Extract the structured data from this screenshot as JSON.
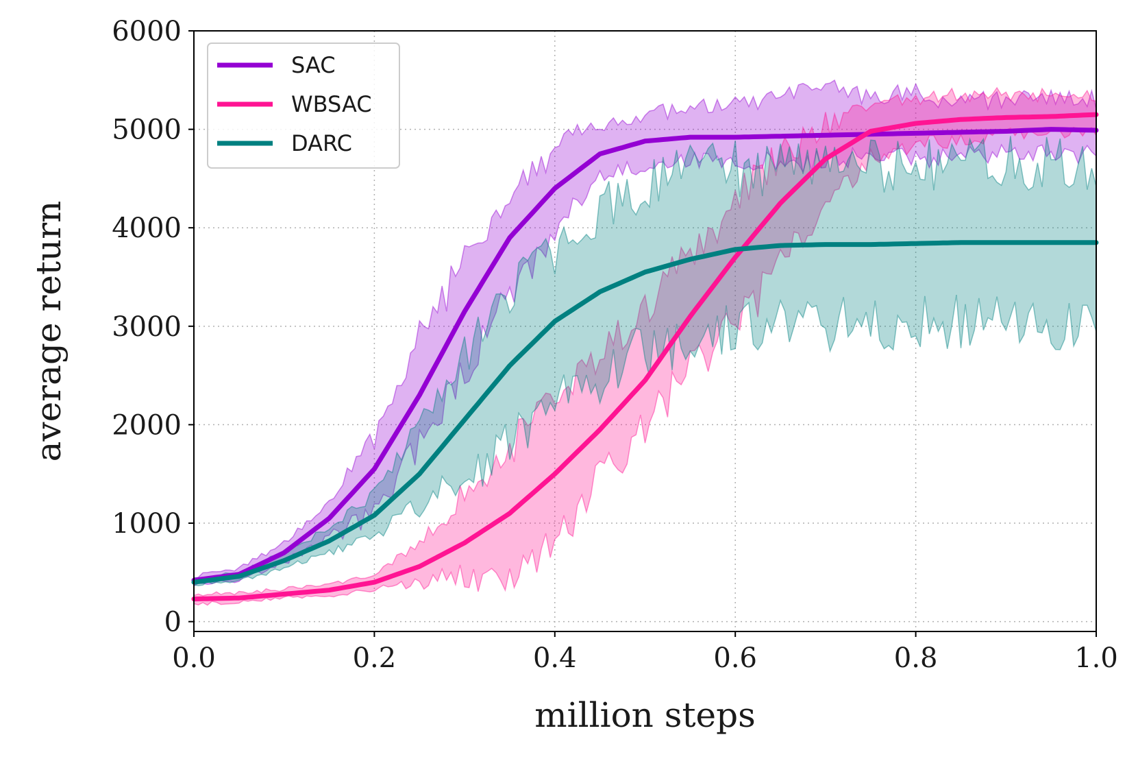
{
  "chart_data": {
    "type": "line",
    "title": "",
    "xlabel": "million steps",
    "ylabel": "average return",
    "xlim": [
      0.0,
      1.0
    ],
    "ylim": [
      -100,
      6000
    ],
    "xticks": [
      "0.0",
      "0.2",
      "0.4",
      "0.6",
      "0.8",
      "1.0"
    ],
    "yticks": [
      "0",
      "1000",
      "2000",
      "3000",
      "4000",
      "5000",
      "6000"
    ],
    "grid": true,
    "legend_position": "top-left",
    "series": [
      {
        "name": "SAC",
        "color": "#9400D3",
        "x": [
          0.0,
          0.05,
          0.1,
          0.15,
          0.2,
          0.25,
          0.3,
          0.35,
          0.4,
          0.45,
          0.5,
          0.55,
          0.6,
          0.65,
          0.7,
          0.75,
          0.8,
          0.85,
          0.9,
          0.95,
          1.0
        ],
        "mean": [
          420,
          480,
          700,
          1050,
          1550,
          2300,
          3150,
          3900,
          4400,
          4750,
          4880,
          4920,
          4920,
          4930,
          4940,
          4950,
          4960,
          4970,
          4980,
          5000,
          4990
        ],
        "lower": [
          380,
          420,
          600,
          850,
          1100,
          1800,
          2500,
          3300,
          3950,
          4500,
          4650,
          4700,
          4700,
          4650,
          4700,
          4750,
          4700,
          4750,
          4750,
          4750,
          4750
        ],
        "upper": [
          460,
          540,
          800,
          1200,
          1900,
          2900,
          3650,
          4400,
          4800,
          5050,
          5150,
          5200,
          5250,
          5300,
          5400,
          5350,
          5350,
          5300,
          5300,
          5300,
          5300
        ]
      },
      {
        "name": "WBSAC",
        "color": "#FF1493",
        "x": [
          0.0,
          0.05,
          0.1,
          0.15,
          0.2,
          0.25,
          0.3,
          0.35,
          0.4,
          0.45,
          0.5,
          0.55,
          0.6,
          0.65,
          0.7,
          0.75,
          0.8,
          0.85,
          0.9,
          0.95,
          1.0
        ],
        "mean": [
          230,
          240,
          280,
          320,
          400,
          560,
          800,
          1100,
          1500,
          1950,
          2450,
          3100,
          3700,
          4250,
          4700,
          4980,
          5060,
          5100,
          5120,
          5130,
          5150
        ],
        "lower": [
          180,
          200,
          240,
          260,
          330,
          400,
          450,
          420,
          900,
          1400,
          2000,
          2550,
          3000,
          3600,
          4200,
          4700,
          4850,
          4900,
          4950,
          4950,
          4980
        ],
        "upper": [
          280,
          290,
          330,
          380,
          470,
          800,
          1300,
          1750,
          2200,
          2700,
          3200,
          3700,
          4300,
          4750,
          5050,
          5250,
          5300,
          5350,
          5350,
          5350,
          5350
        ]
      },
      {
        "name": "DARC",
        "color": "#008080",
        "x": [
          0.0,
          0.05,
          0.1,
          0.15,
          0.2,
          0.25,
          0.3,
          0.35,
          0.4,
          0.45,
          0.5,
          0.55,
          0.6,
          0.65,
          0.7,
          0.75,
          0.8,
          0.85,
          0.9,
          0.95,
          1.0
        ],
        "mean": [
          400,
          460,
          620,
          820,
          1080,
          1500,
          2050,
          2600,
          3050,
          3350,
          3550,
          3680,
          3780,
          3820,
          3830,
          3830,
          3840,
          3850,
          3850,
          3850,
          3850
        ],
        "lower": [
          380,
          420,
          540,
          700,
          900,
          1150,
          1450,
          1800,
          2200,
          2500,
          2750,
          2900,
          2980,
          3000,
          3000,
          3020,
          3030,
          3050,
          3050,
          3050,
          3050
        ],
        "upper": [
          430,
          500,
          700,
          950,
          1300,
          2000,
          2700,
          3300,
          3800,
          4150,
          4400,
          4550,
          4600,
          4620,
          4630,
          4640,
          4640,
          4650,
          4650,
          4650,
          4650
        ]
      }
    ]
  }
}
